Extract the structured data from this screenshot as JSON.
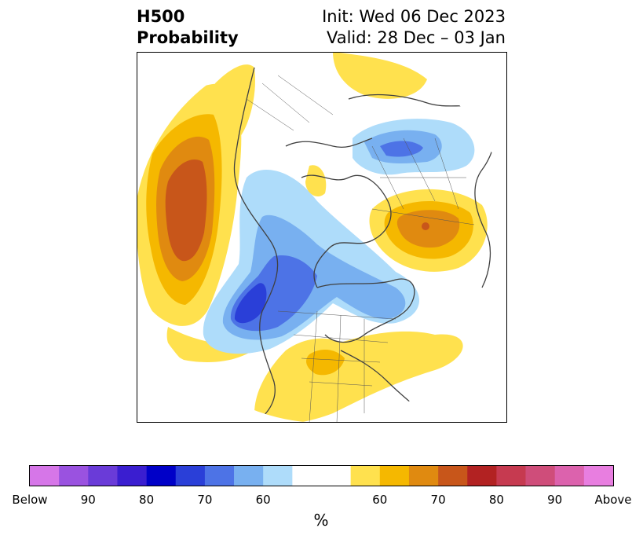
{
  "header": {
    "title_line1": "H500",
    "title_line2": "Probability",
    "init_text": "Init: Wed 06 Dec 2023",
    "valid_text": "Valid: 28 Dec – 03 Jan"
  },
  "colorbar": {
    "unit": "%",
    "colors": [
      "#d676e8",
      "#9a52e0",
      "#6a3bd8",
      "#3a1ed0",
      "#0000c8",
      "#2a3fd8",
      "#4d73e6",
      "#78b0f0",
      "#aedcfa",
      "#ffffff",
      "#ffe14e",
      "#f5b800",
      "#e08a10",
      "#c8561a",
      "#b22222",
      "#c63a50",
      "#cf4d7a",
      "#dc62ad",
      "#e87ee0"
    ],
    "labels": [
      "Below",
      "90",
      "80",
      "70",
      "60",
      "60",
      "70",
      "80",
      "90",
      "Above"
    ]
  },
  "map": {
    "projection": "north-polar-stereographic",
    "description_colors": {
      "above_60": "#ffe14e",
      "above_65": "#f5b800",
      "above_70": "#e08a10",
      "above_75": "#c8561a",
      "below_60": "#aedcfa",
      "below_65": "#78b0f0",
      "below_70": "#4d73e6",
      "below_75": "#2a3fd8"
    }
  }
}
